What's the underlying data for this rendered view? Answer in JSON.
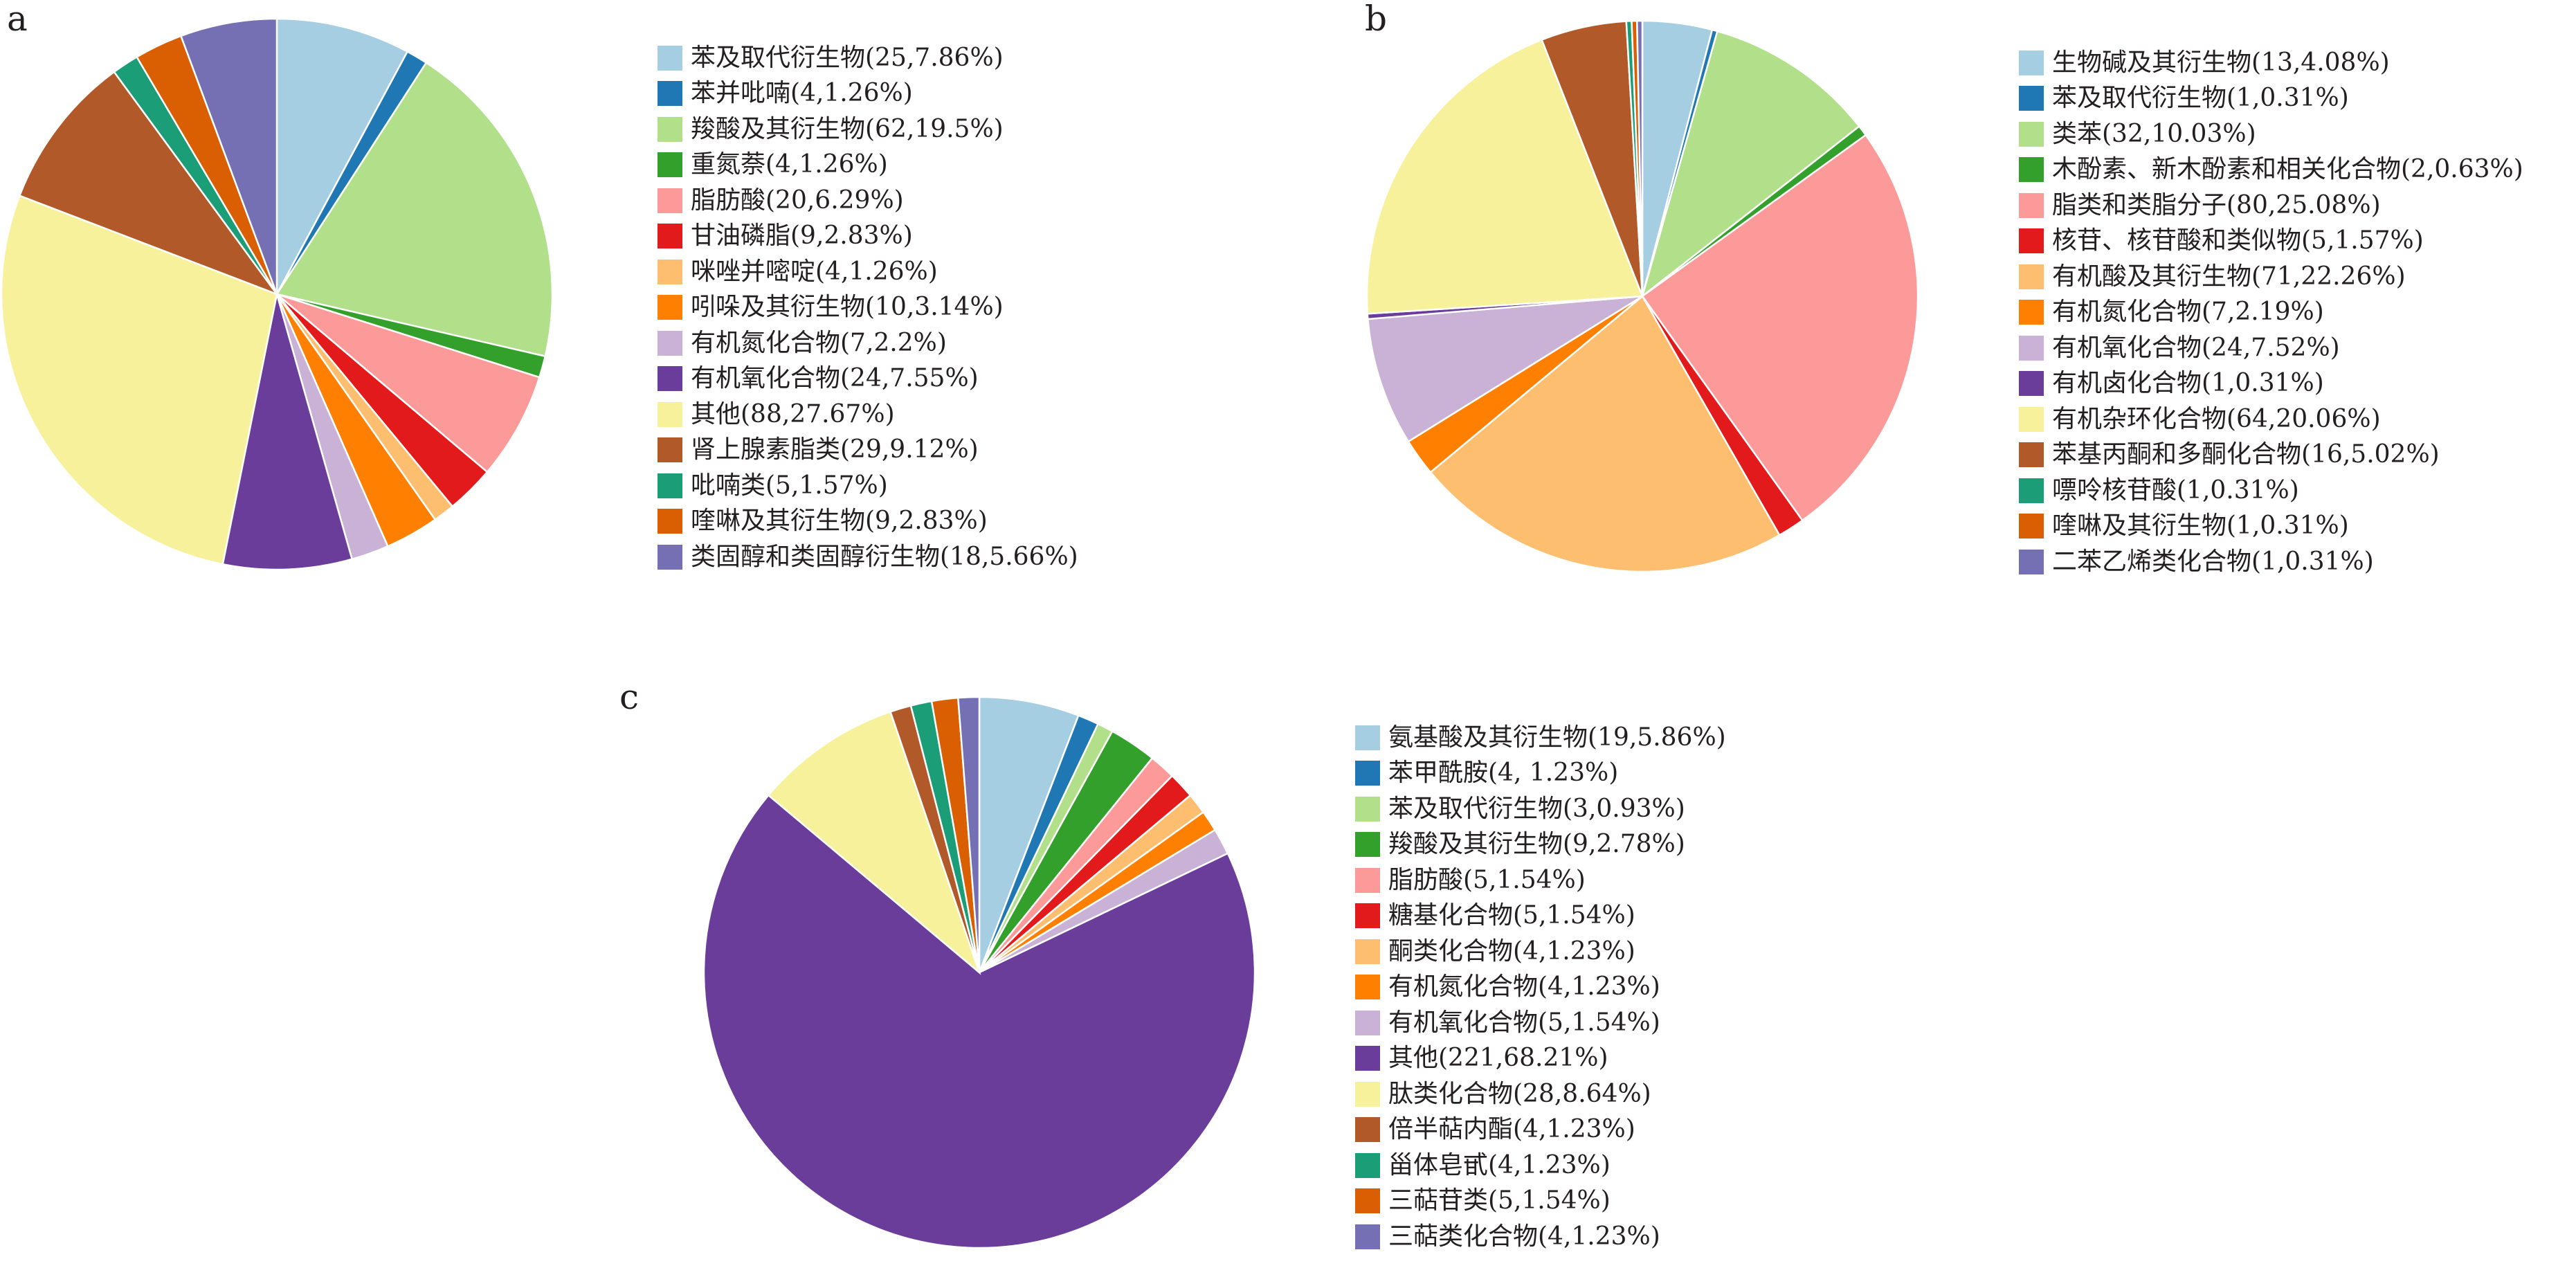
{
  "chart_data": [
    {
      "panel_label": "a",
      "type": "pie",
      "slices": [
        {
          "label": "苯及取代衍生物(25,7.86%)",
          "value": 7.86,
          "color": "#a6cee3"
        },
        {
          "label": "苯并吡喃(4,1.26%)",
          "value": 1.26,
          "color": "#1f78b4"
        },
        {
          "label": "羧酸及其衍生物(62,19.5%)",
          "value": 19.5,
          "color": "#b2df8a"
        },
        {
          "label": "重氮萘(4,1.26%)",
          "value": 1.26,
          "color": "#33a02c"
        },
        {
          "label": "脂肪酸(20,6.29%)",
          "value": 6.29,
          "color": "#fb9a99"
        },
        {
          "label": "甘油磷脂(9,2.83%)",
          "value": 2.83,
          "color": "#e31a1c"
        },
        {
          "label": "咪唑并嘧啶(4,1.26%)",
          "value": 1.26,
          "color": "#fdbf6f"
        },
        {
          "label": "吲哚及其衍生物(10,3.14%)",
          "value": 3.14,
          "color": "#ff7f00"
        },
        {
          "label": "有机氮化合物(7,2.2%)",
          "value": 2.2,
          "color": "#cab2d6"
        },
        {
          "label": "有机氧化合物(24,7.55%)",
          "value": 7.55,
          "color": "#6a3d9a"
        },
        {
          "label": "其他(88,27.67%)",
          "value": 27.67,
          "color": "#f6f19a"
        },
        {
          "label": "肾上腺素脂类(29,9.12%)",
          "value": 9.12,
          "color": "#b15928"
        },
        {
          "label": "吡喃类(5,1.57%)",
          "value": 1.57,
          "color": "#1b9e77"
        },
        {
          "label": "喹啉及其衍生物(9,2.83%)",
          "value": 2.83,
          "color": "#d95f02"
        },
        {
          "label": "类固醇和类固醇衍生物(18,5.66%)",
          "value": 5.66,
          "color": "#7570b3"
        }
      ]
    },
    {
      "panel_label": "b",
      "type": "pie",
      "slices": [
        {
          "label": "生物碱及其衍生物(13,4.08%)",
          "value": 4.08,
          "color": "#a6cee3"
        },
        {
          "label": "苯及取代衍生物(1,0.31%)",
          "value": 0.31,
          "color": "#1f78b4"
        },
        {
          "label": "类苯(32,10.03%)",
          "value": 10.03,
          "color": "#b2df8a"
        },
        {
          "label": "木酚素、新木酚素和相关化合物(2,0.63%)",
          "value": 0.63,
          "color": "#33a02c"
        },
        {
          "label": "脂类和类脂分子(80,25.08%)",
          "value": 25.08,
          "color": "#fb9a99"
        },
        {
          "label": "核苷、核苷酸和类似物(5,1.57%)",
          "value": 1.57,
          "color": "#e31a1c"
        },
        {
          "label": "有机酸及其衍生物(71,22.26%)",
          "value": 22.26,
          "color": "#fdbf6f"
        },
        {
          "label": "有机氮化合物(7,2.19%)",
          "value": 2.19,
          "color": "#ff7f00"
        },
        {
          "label": "有机氧化合物(24,7.52%)",
          "value": 7.52,
          "color": "#cab2d6"
        },
        {
          "label": "有机卤化合物(1,0.31%)",
          "value": 0.31,
          "color": "#6a3d9a"
        },
        {
          "label": "有机杂环化合物(64,20.06%)",
          "value": 20.06,
          "color": "#f6f19a"
        },
        {
          "label": "苯基丙酮和多酮化合物(16,5.02%)",
          "value": 5.02,
          "color": "#b15928"
        },
        {
          "label": "嘌呤核苷酸(1,0.31%)",
          "value": 0.31,
          "color": "#1b9e77"
        },
        {
          "label": "喹啉及其衍生物(1,0.31%)",
          "value": 0.31,
          "color": "#d95f02"
        },
        {
          "label": "二苯乙烯类化合物(1,0.31%)",
          "value": 0.31,
          "color": "#7570b3"
        }
      ]
    },
    {
      "panel_label": "c",
      "type": "pie",
      "slices": [
        {
          "label": "氨基酸及其衍生物(19,5.86%)",
          "value": 5.86,
          "color": "#a6cee3"
        },
        {
          "label": "苯甲酰胺(4, 1.23%)",
          "value": 1.23,
          "color": "#1f78b4"
        },
        {
          "label": "苯及取代衍生物(3,0.93%)",
          "value": 0.93,
          "color": "#b2df8a"
        },
        {
          "label": "羧酸及其衍生物(9,2.78%)",
          "value": 2.78,
          "color": "#33a02c"
        },
        {
          "label": "脂肪酸(5,1.54%)",
          "value": 1.54,
          "color": "#fb9a99"
        },
        {
          "label": "糖基化合物(5,1.54%)",
          "value": 1.54,
          "color": "#e31a1c"
        },
        {
          "label": "酮类化合物(4,1.23%)",
          "value": 1.23,
          "color": "#fdbf6f"
        },
        {
          "label": "有机氮化合物(4,1.23%)",
          "value": 1.23,
          "color": "#ff7f00"
        },
        {
          "label": "有机氧化合物(5,1.54%)",
          "value": 1.54,
          "color": "#cab2d6"
        },
        {
          "label": "其他(221,68.21%)",
          "value": 68.21,
          "color": "#6a3d9a"
        },
        {
          "label": "肽类化合物(28,8.64%)",
          "value": 8.64,
          "color": "#f6f19a"
        },
        {
          "label": "倍半萜内酯(4,1.23%)",
          "value": 1.23,
          "color": "#b15928"
        },
        {
          "label": "甾体皂甙(4,1.23%)",
          "value": 1.23,
          "color": "#1b9e77"
        },
        {
          "label": "三萜苷类(5,1.54%)",
          "value": 1.54,
          "color": "#d95f02"
        },
        {
          "label": "三萜类化合物(4,1.23%)",
          "value": 1.23,
          "color": "#7570b3"
        }
      ]
    }
  ]
}
